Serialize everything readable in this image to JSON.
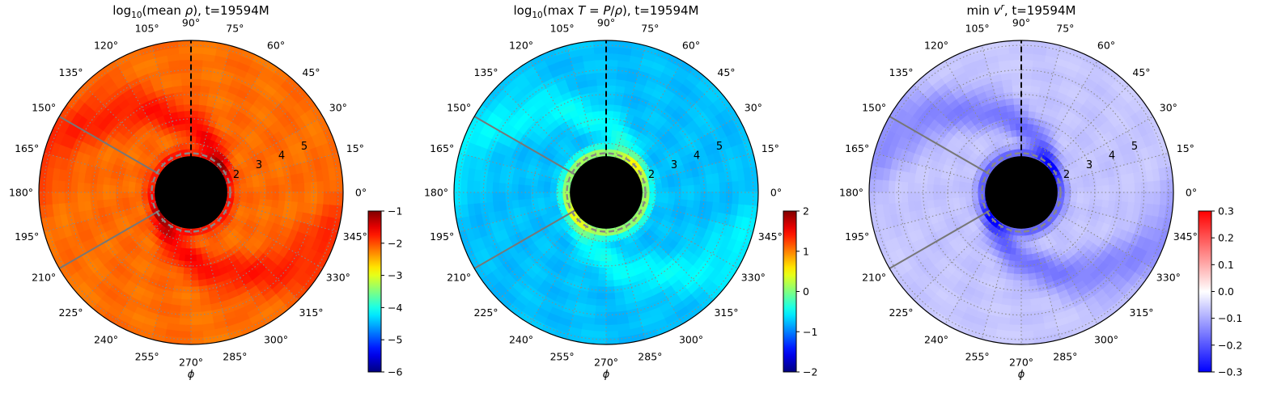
{
  "figure": {
    "background": "#ffffff"
  },
  "chart_data": [
    {
      "type": "heatmap",
      "projection": "polar",
      "title": "log₁₀(mean ρ), t=19594M",
      "title_parts": {
        "lead": "log",
        "sub": "10",
        "rest": "(mean ",
        "var": "ρ",
        "tail": "), t=19594M"
      },
      "xlabel": "ϕ",
      "angular_ticks_deg": [
        0,
        15,
        30,
        45,
        60,
        75,
        90,
        105,
        120,
        135,
        150,
        165,
        180,
        195,
        210,
        225,
        240,
        255,
        270,
        285,
        300,
        315,
        330,
        345
      ],
      "angular_tick_labels": [
        "0°",
        "15°",
        "30°",
        "45°",
        "60°",
        "75°",
        "90°",
        "105°",
        "120°",
        "135°",
        "150°",
        "165°",
        "180°",
        "195°",
        "210°",
        "225°",
        "240°",
        "255°",
        "270°",
        "285°",
        "300°",
        "315°",
        "330°",
        "345°"
      ],
      "radial_ticks": [
        2,
        3,
        4,
        5
      ],
      "radial_tick_labels": [
        "2",
        "3",
        "4",
        "5"
      ],
      "grid": true,
      "colormap": "jet",
      "colorbar": {
        "min": -6,
        "max": -1,
        "ticks": [
          -6,
          -5,
          -4,
          -3,
          -2,
          -1
        ],
        "tick_labels": [
          "−6",
          "−5",
          "−4",
          "−3",
          "−2",
          "−1"
        ]
      },
      "field_levels": {
        "base": -2.15,
        "spiral": -1.55,
        "inner_ring": -1.6,
        "outer": -2.2
      },
      "overlays": [
        "black dashed line at 90°",
        "gray dashed circle near r=2",
        "gray lines at 150° and 210°",
        "black disc at centre"
      ]
    },
    {
      "type": "heatmap",
      "projection": "polar",
      "title": "log₁₀(max T = P/ρ), t=19594M",
      "title_parts": {
        "lead": "log",
        "sub": "10",
        "rest": "(max ",
        "var": "T",
        "mid": " = ",
        "var2": "P",
        "slash": "/",
        "var3": "ρ",
        "tail": "), t=19594M"
      },
      "xlabel": "ϕ",
      "angular_ticks_deg": [
        0,
        15,
        30,
        45,
        60,
        75,
        90,
        105,
        120,
        135,
        150,
        165,
        180,
        195,
        210,
        225,
        240,
        255,
        270,
        285,
        300,
        315,
        330,
        345
      ],
      "angular_tick_labels": [
        "0°",
        "15°",
        "30°",
        "45°",
        "60°",
        "75°",
        "90°",
        "105°",
        "120°",
        "135°",
        "150°",
        "165°",
        "180°",
        "195°",
        "210°",
        "225°",
        "240°",
        "255°",
        "270°",
        "285°",
        "300°",
        "315°",
        "330°",
        "345°"
      ],
      "radial_ticks": [
        2,
        3,
        4,
        5
      ],
      "radial_tick_labels": [
        "2",
        "3",
        "4",
        "5"
      ],
      "grid": true,
      "colormap": "jet",
      "colorbar": {
        "min": -2,
        "max": 2,
        "ticks": [
          -2,
          -1,
          0,
          1,
          2
        ],
        "tick_labels": [
          "−2",
          "−1",
          "0",
          "1",
          "2"
        ]
      },
      "field_levels": {
        "base": -0.75,
        "spiral": -0.4,
        "inner_ring": 0.4,
        "outer": -0.75
      },
      "overlays": [
        "black dashed line at 90°",
        "gray dashed circle near r=2",
        "gray lines at 150° and 210°",
        "black disc at centre"
      ]
    },
    {
      "type": "heatmap",
      "projection": "polar",
      "title": "min vʳ, t=19594M",
      "title_parts": {
        "lead": "min ",
        "var": "v",
        "sup": "r",
        "tail": ", t=19594M"
      },
      "xlabel": "ϕ",
      "angular_ticks_deg": [
        0,
        15,
        30,
        45,
        60,
        75,
        90,
        105,
        120,
        135,
        150,
        165,
        180,
        195,
        210,
        225,
        240,
        255,
        270,
        285,
        300,
        315,
        330,
        345
      ],
      "angular_tick_labels": [
        "0°",
        "15°",
        "30°",
        "45°",
        "60°",
        "75°",
        "90°",
        "105°",
        "120°",
        "135°",
        "150°",
        "165°",
        "180°",
        "195°",
        "210°",
        "225°",
        "240°",
        "255°",
        "270°",
        "285°",
        "300°",
        "315°",
        "330°",
        "345°"
      ],
      "radial_ticks": [
        2,
        3,
        4,
        5
      ],
      "radial_tick_labels": [
        "2",
        "3",
        "4",
        "5"
      ],
      "grid": true,
      "colormap": "bwr",
      "colorbar": {
        "min": -0.3,
        "max": 0.3,
        "ticks": [
          -0.3,
          -0.2,
          -0.1,
          0.0,
          0.1,
          0.2,
          0.3
        ],
        "tick_labels": [
          "−0.3",
          "−0.2",
          "−0.1",
          "0.0",
          "0.1",
          "0.2",
          "0.3"
        ]
      },
      "field_levels": {
        "base": -0.07,
        "spiral": -0.19,
        "inner_ring": -0.22,
        "outer": -0.06
      },
      "overlays": [
        "black dashed line at 90°",
        "gray dashed circle near r=2",
        "gray lines at 150° and 210°",
        "black disc at centre"
      ]
    }
  ]
}
